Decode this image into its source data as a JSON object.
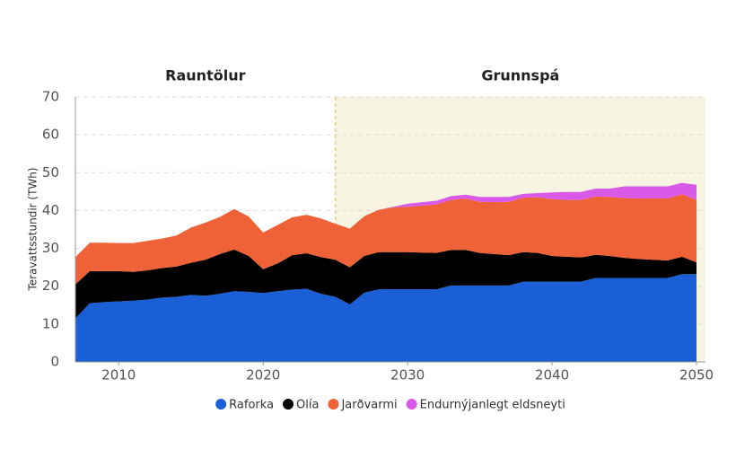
{
  "chart_data": {
    "type": "stacked_area",
    "y_label": "Teravattsstundir (TWh)",
    "regions": [
      {
        "label": "Rauntölur",
        "start": 2007,
        "end": 2025,
        "shaded": false
      },
      {
        "label": "Grunnspá",
        "start": 2025,
        "end": 2050,
        "shaded": true,
        "color": "#f8f4e2",
        "border_color": "#e6cf7c"
      }
    ],
    "x": [
      2007,
      2008,
      2009,
      2010,
      2011,
      2012,
      2013,
      2014,
      2015,
      2016,
      2017,
      2018,
      2019,
      2020,
      2021,
      2022,
      2023,
      2024,
      2025,
      2026,
      2027,
      2028,
      2029,
      2030,
      2031,
      2032,
      2033,
      2034,
      2035,
      2036,
      2037,
      2038,
      2039,
      2040,
      2041,
      2042,
      2043,
      2044,
      2045,
      2046,
      2047,
      2048,
      2049,
      2050
    ],
    "series": [
      {
        "name": "Raforka",
        "color": "#1a5fd6",
        "values": [
          11.5,
          15.5,
          15.8,
          16,
          16.2,
          16.5,
          17,
          17.2,
          17.7,
          17.5,
          18,
          18.7,
          18.5,
          18.2,
          18.7,
          19.1,
          19.3,
          18,
          17.2,
          15.2,
          18.3,
          19.2,
          19.2,
          19.2,
          19.2,
          19.2,
          20.2,
          20.2,
          20.2,
          20.2,
          20.2,
          21.2,
          21.2,
          21.2,
          21.2,
          21.2,
          22.2,
          22.2,
          22.2,
          22.2,
          22.2,
          22.2,
          23.2,
          23.2
        ]
      },
      {
        "name": "Olía",
        "color": "#000000",
        "values": [
          9.0,
          8.5,
          8.2,
          8.0,
          7.6,
          7.7,
          7.8,
          8.0,
          8.5,
          9.5,
          10.5,
          11.0,
          9.5,
          6.3,
          7.3,
          9.1,
          9.4,
          9.7,
          9.8,
          9.8,
          9.7,
          9.8,
          9.8,
          9.8,
          9.7,
          9.6,
          9.4,
          9.4,
          8.6,
          8.3,
          8.0,
          7.8,
          7.6,
          6.8,
          6.6,
          6.4,
          6.1,
          5.8,
          5.3,
          5.0,
          4.8,
          4.6,
          4.6,
          3.1
        ]
      },
      {
        "name": "Jarðvarmi",
        "color": "#ef6136",
        "values": [
          7.2,
          7.5,
          7.5,
          7.4,
          7.6,
          7.8,
          7.8,
          8.2,
          9.3,
          9.8,
          9.8,
          10.7,
          10.4,
          9.7,
          10.2,
          10.0,
          10.2,
          10.2,
          9.5,
          10.2,
          10.5,
          11.2,
          11.8,
          12.0,
          12.4,
          12.8,
          13.2,
          13.6,
          13.5,
          13.7,
          14.1,
          14.4,
          14.7,
          15.0,
          15.0,
          15.2,
          15.4,
          15.6,
          15.8,
          16.0,
          16.2,
          16.4,
          16.5,
          16.5
        ]
      },
      {
        "name": "Endurnýjanlegt eldsneyti",
        "color": "#d95ae8",
        "values": [
          0,
          0,
          0,
          0,
          0,
          0,
          0,
          0,
          0,
          0,
          0,
          0,
          0,
          0,
          0,
          0,
          0,
          0,
          0,
          0,
          0,
          0,
          0.2,
          0.8,
          0.9,
          1.0,
          1.0,
          1.0,
          1.3,
          1.4,
          1.3,
          1.0,
          1.1,
          1.8,
          2.1,
          2.1,
          2.1,
          2.2,
          3.1,
          3.2,
          3.2,
          3.2,
          3.0,
          4.0
        ]
      }
    ],
    "xlim": [
      2007,
      2050
    ],
    "ylim": [
      0,
      70
    ],
    "xticks": [
      2010,
      2020,
      2030,
      2040,
      2050
    ],
    "yticks": [
      0,
      10,
      20,
      30,
      40,
      50,
      60,
      70
    ],
    "grid": true,
    "legend": "bottom"
  }
}
